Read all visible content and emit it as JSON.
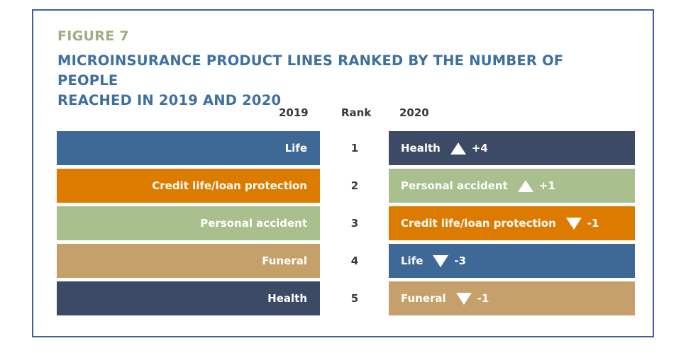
{
  "figure_label": "FIGURE 7",
  "title_line1": "MICROINSURANCE PRODUCT LINES RANKED BY THE NUMBER OF PEOPLE",
  "title_line2": "REACHED IN 2019 AND 2020",
  "colors": {
    "frame": "#3f5ea7",
    "figure_label": "#9bb07f",
    "title": "#3e6fa1",
    "Life": "#3e6896",
    "Credit life/loan protection": "#dd7a00",
    "Personal accident": "#a9bf8e",
    "Funeral": "#c6a06a",
    "Health": "#3c4a65"
  },
  "chart_data": {
    "type": "table",
    "columns": [
      "2019",
      "Rank",
      "2020"
    ],
    "ranks": [
      "1",
      "2",
      "3",
      "4",
      "5"
    ],
    "rows_2019": [
      "Life",
      "Credit life/loan protection",
      "Personal accident",
      "Funeral",
      "Health"
    ],
    "rows_2020": [
      {
        "label": "Health",
        "direction": "up",
        "change": "+4"
      },
      {
        "label": "Personal accident",
        "direction": "up",
        "change": "+1"
      },
      {
        "label": "Credit life/loan protection",
        "direction": "down",
        "change": "-1"
      },
      {
        "label": "Life",
        "direction": "down",
        "change": "-3"
      },
      {
        "label": "Funeral",
        "direction": "down",
        "change": "-1"
      }
    ]
  }
}
